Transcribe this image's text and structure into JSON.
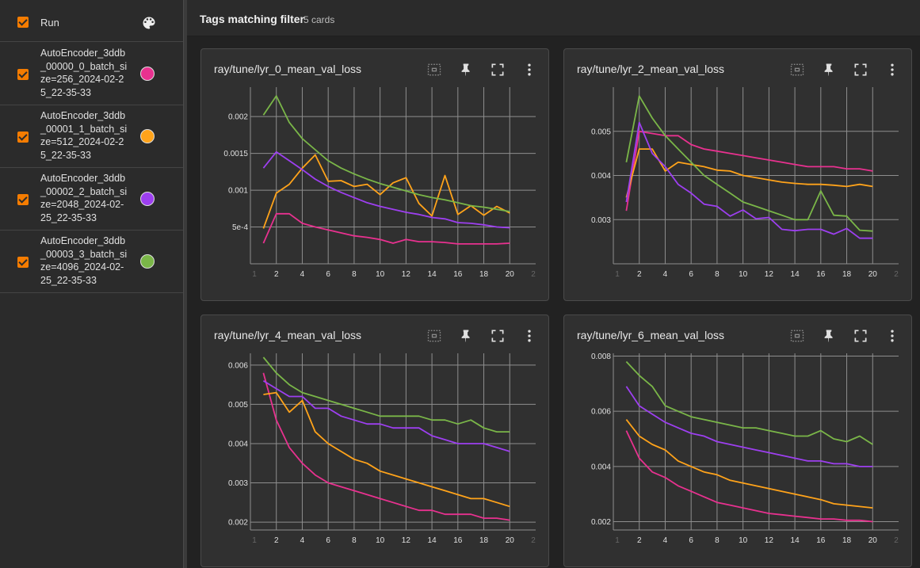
{
  "sidebar": {
    "header_label": "Run",
    "runs": [
      {
        "label": "AutoEncoder_3ddb_00000_0_batch_size=256_2024-02-25_22-35-33",
        "color": "#e8318f"
      },
      {
        "label": "AutoEncoder_3ddb_00001_1_batch_size=512_2024-02-25_22-35-33",
        "color": "#ffa31a"
      },
      {
        "label": "AutoEncoder_3ddb_00002_2_batch_size=2048_2024-02-25_22-35-33",
        "color": "#9d3ff0"
      },
      {
        "label": "AutoEncoder_3ddb_00003_3_batch_size=4096_2024-02-25_22-35-33",
        "color": "#7ab648"
      }
    ]
  },
  "main": {
    "title": "Tags matching filter",
    "card_count": "5 cards"
  },
  "chart_data": [
    {
      "type": "line",
      "title": "ray/tune/lyr_0_mean_val_loss",
      "xlim": [
        0,
        22
      ],
      "ylim": [
        0,
        0.0024
      ],
      "xticks": [
        "2",
        "4",
        "6",
        "8",
        "10",
        "12",
        "14",
        "16",
        "18",
        "20"
      ],
      "xticks_faint": [
        "1",
        "2"
      ],
      "yticks": [
        {
          "v": 0.0005,
          "label": "5e-4"
        },
        {
          "v": 0.001,
          "label": "0.001"
        },
        {
          "v": 0.0015,
          "label": "0.0015"
        },
        {
          "v": 0.002,
          "label": "0.002"
        }
      ],
      "x": [
        1,
        2,
        3,
        4,
        5,
        6,
        7,
        8,
        9,
        10,
        11,
        12,
        13,
        14,
        15,
        16,
        17,
        18,
        19,
        20
      ],
      "series": [
        {
          "color": "#e8318f",
          "values": [
            0.00028,
            0.00068,
            0.00068,
            0.00055,
            0.0005,
            0.00046,
            0.00042,
            0.00038,
            0.00036,
            0.00033,
            0.00028,
            0.00033,
            0.0003,
            0.0003,
            0.00029,
            0.00027,
            0.00027,
            0.00027,
            0.00027,
            0.00028
          ]
        },
        {
          "color": "#ffa31a",
          "values": [
            0.00048,
            0.00096,
            0.00108,
            0.0013,
            0.00148,
            0.00112,
            0.00113,
            0.00105,
            0.00108,
            0.00094,
            0.0011,
            0.00117,
            0.00082,
            0.00065,
            0.0012,
            0.00067,
            0.00079,
            0.00066,
            0.00078,
            0.00069
          ]
        },
        {
          "color": "#9d3ff0",
          "values": [
            0.0013,
            0.00152,
            0.0014,
            0.00128,
            0.00115,
            0.00105,
            0.00097,
            0.0009,
            0.00083,
            0.00078,
            0.00074,
            0.0007,
            0.00067,
            0.00063,
            0.00061,
            0.00056,
            0.00055,
            0.00053,
            0.0005,
            0.00049
          ]
        },
        {
          "color": "#7ab648",
          "values": [
            0.00202,
            0.00228,
            0.00192,
            0.0017,
            0.00155,
            0.0014,
            0.0013,
            0.00122,
            0.00115,
            0.00109,
            0.00104,
            0.00099,
            0.00094,
            0.0009,
            0.00087,
            0.00083,
            0.00079,
            0.00077,
            0.00074,
            0.00071
          ]
        }
      ]
    },
    {
      "type": "line",
      "title": "ray/tune/lyr_2_mean_val_loss",
      "xlim": [
        0,
        22
      ],
      "ylim": [
        0.002,
        0.006
      ],
      "xticks": [
        "2",
        "4",
        "6",
        "8",
        "10",
        "12",
        "14",
        "16",
        "18",
        "20"
      ],
      "xticks_faint": [
        "1",
        "2"
      ],
      "yticks": [
        {
          "v": 0.003,
          "label": "0.003"
        },
        {
          "v": 0.004,
          "label": "0.004"
        },
        {
          "v": 0.005,
          "label": "0.005"
        }
      ],
      "x": [
        1,
        2,
        3,
        4,
        5,
        6,
        7,
        8,
        9,
        10,
        11,
        12,
        13,
        14,
        15,
        16,
        17,
        18,
        19,
        20
      ],
      "series": [
        {
          "color": "#e8318f",
          "values": [
            0.0032,
            0.005,
            0.00495,
            0.0049,
            0.0049,
            0.0047,
            0.0046,
            0.00455,
            0.0045,
            0.00445,
            0.0044,
            0.00435,
            0.0043,
            0.00425,
            0.0042,
            0.0042,
            0.0042,
            0.00415,
            0.00415,
            0.0041
          ]
        },
        {
          "color": "#ffa31a",
          "values": [
            0.0035,
            0.0046,
            0.0046,
            0.0041,
            0.0043,
            0.00425,
            0.0042,
            0.00412,
            0.0041,
            0.004,
            0.00395,
            0.0039,
            0.00385,
            0.00382,
            0.0038,
            0.0038,
            0.00378,
            0.00375,
            0.0038,
            0.00375
          ]
        },
        {
          "color": "#9d3ff0",
          "values": [
            0.0034,
            0.0052,
            0.0045,
            0.0042,
            0.0038,
            0.0036,
            0.00335,
            0.0033,
            0.00308,
            0.00322,
            0.00302,
            0.00305,
            0.00278,
            0.00275,
            0.00278,
            0.00278,
            0.00267,
            0.0028,
            0.00258,
            0.00258
          ]
        },
        {
          "color": "#7ab648",
          "values": [
            0.0043,
            0.0058,
            0.0053,
            0.0049,
            0.0046,
            0.0043,
            0.004,
            0.0038,
            0.0036,
            0.0034,
            0.0033,
            0.0032,
            0.0031,
            0.003,
            0.003,
            0.00365,
            0.0031,
            0.00308,
            0.00276,
            0.00274
          ]
        }
      ]
    },
    {
      "type": "line",
      "title": "ray/tune/lyr_4_mean_val_loss",
      "xlim": [
        0,
        22
      ],
      "ylim": [
        0.0018,
        0.0063
      ],
      "xticks": [
        "2",
        "4",
        "6",
        "8",
        "10",
        "12",
        "14",
        "16",
        "18",
        "20"
      ],
      "xticks_faint": [
        "1",
        "2"
      ],
      "yticks": [
        {
          "v": 0.002,
          "label": "0.002"
        },
        {
          "v": 0.003,
          "label": "0.003"
        },
        {
          "v": 0.004,
          "label": "0.004"
        },
        {
          "v": 0.005,
          "label": "0.005"
        },
        {
          "v": 0.006,
          "label": "0.006"
        }
      ],
      "x": [
        1,
        2,
        3,
        4,
        5,
        6,
        7,
        8,
        9,
        10,
        11,
        12,
        13,
        14,
        15,
        16,
        17,
        18,
        19,
        20
      ],
      "series": [
        {
          "color": "#e8318f",
          "values": [
            0.0058,
            0.0046,
            0.0039,
            0.0035,
            0.0032,
            0.003,
            0.0029,
            0.0028,
            0.0027,
            0.0026,
            0.0025,
            0.0024,
            0.0023,
            0.0023,
            0.0022,
            0.0022,
            0.0022,
            0.0021,
            0.0021,
            0.00205
          ]
        },
        {
          "color": "#ffa31a",
          "values": [
            0.00525,
            0.0053,
            0.0048,
            0.0051,
            0.0043,
            0.004,
            0.0038,
            0.0036,
            0.0035,
            0.0033,
            0.0032,
            0.0031,
            0.003,
            0.0029,
            0.0028,
            0.0027,
            0.0026,
            0.0026,
            0.0025,
            0.0024
          ]
        },
        {
          "color": "#9d3ff0",
          "values": [
            0.0056,
            0.0054,
            0.0052,
            0.0052,
            0.0049,
            0.0049,
            0.0047,
            0.0046,
            0.0045,
            0.0045,
            0.0044,
            0.0044,
            0.0044,
            0.0042,
            0.0041,
            0.004,
            0.004,
            0.004,
            0.0039,
            0.0038
          ]
        },
        {
          "color": "#7ab648",
          "values": [
            0.0062,
            0.0058,
            0.0055,
            0.0053,
            0.0052,
            0.0051,
            0.005,
            0.0049,
            0.0048,
            0.0047,
            0.0047,
            0.0047,
            0.0047,
            0.0046,
            0.0046,
            0.0045,
            0.0046,
            0.0044,
            0.0043,
            0.0043
          ]
        }
      ]
    },
    {
      "type": "line",
      "title": "ray/tune/lyr_6_mean_val_loss",
      "xlim": [
        0,
        22
      ],
      "ylim": [
        0.0017,
        0.0081
      ],
      "xticks": [
        "2",
        "4",
        "6",
        "8",
        "10",
        "12",
        "14",
        "16",
        "18",
        "20"
      ],
      "xticks_faint": [
        "1",
        "2"
      ],
      "yticks": [
        {
          "v": 0.002,
          "label": "0.002"
        },
        {
          "v": 0.004,
          "label": "0.004"
        },
        {
          "v": 0.006,
          "label": "0.006"
        },
        {
          "v": 0.008,
          "label": "0.008"
        }
      ],
      "x": [
        1,
        2,
        3,
        4,
        5,
        6,
        7,
        8,
        9,
        10,
        11,
        12,
        13,
        14,
        15,
        16,
        17,
        18,
        19,
        20
      ],
      "series": [
        {
          "color": "#e8318f",
          "values": [
            0.0053,
            0.0043,
            0.0038,
            0.0036,
            0.0033,
            0.0031,
            0.0029,
            0.0027,
            0.0026,
            0.0025,
            0.0024,
            0.0023,
            0.00225,
            0.0022,
            0.00215,
            0.0021,
            0.0021,
            0.00205,
            0.00205,
            0.002
          ]
        },
        {
          "color": "#ffa31a",
          "values": [
            0.0057,
            0.0051,
            0.0048,
            0.0046,
            0.0042,
            0.004,
            0.0038,
            0.0037,
            0.0035,
            0.0034,
            0.0033,
            0.0032,
            0.0031,
            0.003,
            0.0029,
            0.0028,
            0.00265,
            0.0026,
            0.00255,
            0.0025
          ]
        },
        {
          "color": "#9d3ff0",
          "values": [
            0.0069,
            0.0062,
            0.0059,
            0.0056,
            0.0054,
            0.0052,
            0.0051,
            0.0049,
            0.0048,
            0.0047,
            0.0046,
            0.0045,
            0.0044,
            0.0043,
            0.0042,
            0.0042,
            0.0041,
            0.0041,
            0.004,
            0.004
          ]
        },
        {
          "color": "#7ab648",
          "values": [
            0.0078,
            0.0073,
            0.0069,
            0.0062,
            0.006,
            0.0058,
            0.0057,
            0.0056,
            0.0055,
            0.0054,
            0.0054,
            0.0053,
            0.0052,
            0.0051,
            0.0051,
            0.0053,
            0.005,
            0.0049,
            0.0051,
            0.0048
          ]
        }
      ]
    }
  ]
}
